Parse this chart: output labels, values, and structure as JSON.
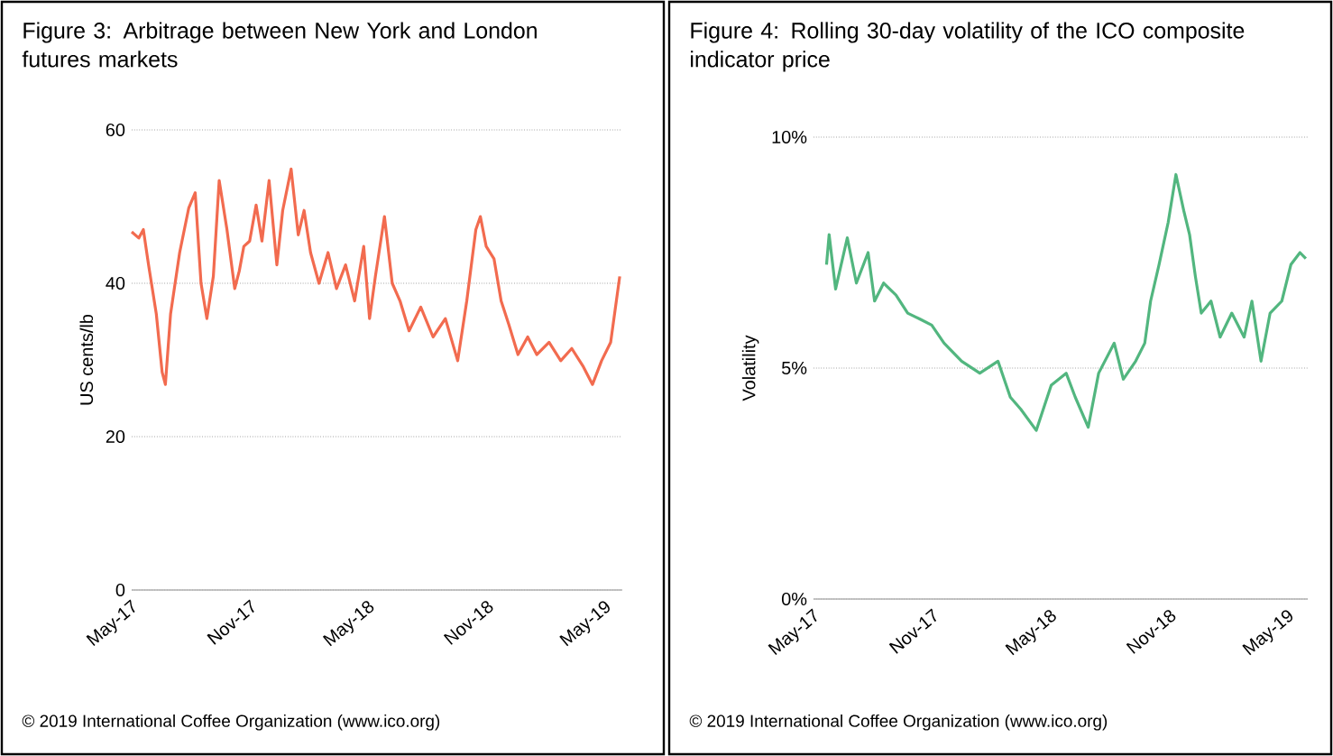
{
  "chart_data": [
    {
      "type": "line",
      "title": "Figure 3: Arbitrage between New York and London futures markets",
      "ylabel": "US cents/lb",
      "color": "#f26b4f",
      "grid": "y",
      "x": [
        "2017-05-01",
        "2017-05-12",
        "2017-05-19",
        "2017-05-27",
        "2017-06-08",
        "2017-06-17",
        "2017-06-22",
        "2017-06-30",
        "2017-07-14",
        "2017-07-28",
        "2017-08-07",
        "2017-08-16",
        "2017-08-25",
        "2017-09-04",
        "2017-09-13",
        "2017-09-25",
        "2017-10-07",
        "2017-10-14",
        "2017-10-21",
        "2017-10-30",
        "2017-11-09",
        "2017-11-18",
        "2017-11-29",
        "2017-12-11",
        "2017-12-20",
        "2018-01-02",
        "2018-01-13",
        "2018-01-22",
        "2018-02-01",
        "2018-02-14",
        "2018-02-28",
        "2018-03-13",
        "2018-03-27",
        "2018-04-10",
        "2018-04-24",
        "2018-05-03",
        "2018-05-12",
        "2018-05-26",
        "2018-06-07",
        "2018-06-19",
        "2018-07-03",
        "2018-07-21",
        "2018-08-09",
        "2018-08-28",
        "2018-09-16",
        "2018-09-30",
        "2018-10-14",
        "2018-10-21",
        "2018-10-30",
        "2018-11-11",
        "2018-11-22",
        "2018-12-04",
        "2018-12-18",
        "2019-01-02",
        "2019-01-16",
        "2019-02-04",
        "2019-02-22",
        "2019-03-11",
        "2019-03-29",
        "2019-04-12",
        "2019-04-26",
        "2019-05-10",
        "2019-05-24"
      ],
      "values": [
        46.7,
        45.9,
        47,
        42.4,
        36,
        28.4,
        26.8,
        36,
        44,
        49.8,
        51.8,
        40,
        35.4,
        40.9,
        53.4,
        47,
        39.3,
        41.6,
        44.8,
        45.5,
        50.2,
        45.5,
        53.4,
        42.4,
        49.5,
        54.9,
        46.3,
        49.5,
        44,
        40,
        44,
        39.3,
        42.4,
        37.7,
        44.8,
        35.4,
        40.9,
        48.7,
        40,
        37.7,
        33.8,
        36.9,
        33,
        35.4,
        29.9,
        37.7,
        47,
        48.7,
        44.8,
        43.2,
        37.7,
        34.6,
        30.7,
        33,
        30.7,
        32.3,
        29.9,
        31.5,
        29.1,
        26.8,
        29.9,
        32.3,
        40.9
      ],
      "xlim": [
        "2017-05-01",
        "2019-05-28"
      ],
      "ylim": [
        0,
        60
      ],
      "yticks": [
        0,
        20,
        40,
        60
      ],
      "xticks": [
        {
          "value": "2017-05-01",
          "label": "May-17"
        },
        {
          "value": "2017-11-01",
          "label": "Nov-17"
        },
        {
          "value": "2018-05-01",
          "label": "May-18"
        },
        {
          "value": "2018-11-01",
          "label": "Nov-18"
        },
        {
          "value": "2019-05-01",
          "label": "May-19"
        }
      ],
      "annotations": [
        "© 2019 International Coffee Organization (www.ico.org)"
      ]
    },
    {
      "type": "line",
      "title": "Figure 4: Rolling 30-day volatility of the ICO composite indicator price",
      "ylabel": "Volatility",
      "color": "#52b67f",
      "grid": "y",
      "x": [
        "2017-05-21",
        "2017-05-25",
        "2017-06-04",
        "2017-06-22",
        "2017-07-06",
        "2017-07-24",
        "2017-08-03",
        "2017-08-17",
        "2017-09-05",
        "2017-09-23",
        "2017-10-12",
        "2017-10-30",
        "2017-11-18",
        "2017-12-15",
        "2018-01-12",
        "2018-02-09",
        "2018-02-28",
        "2018-03-16",
        "2018-04-09",
        "2018-05-02",
        "2018-05-25",
        "2018-06-08",
        "2018-06-28",
        "2018-07-14",
        "2018-08-07",
        "2018-08-21",
        "2018-09-09",
        "2018-09-23",
        "2018-10-02",
        "2018-10-15",
        "2018-10-29",
        "2018-11-10",
        "2018-11-22",
        "2018-12-01",
        "2018-12-10",
        "2018-12-19",
        "2019-01-03",
        "2019-01-17",
        "2019-02-04",
        "2019-02-23",
        "2019-03-07",
        "2019-03-21",
        "2019-04-04",
        "2019-04-22",
        "2019-05-06",
        "2019-05-20",
        "2019-05-29"
      ],
      "values": [
        7.24,
        7.89,
        6.71,
        7.82,
        6.84,
        7.5,
        6.45,
        6.84,
        6.58,
        6.19,
        6.06,
        5.93,
        5.54,
        5.15,
        4.89,
        5.15,
        4.37,
        4.11,
        3.65,
        4.63,
        4.89,
        4.37,
        3.72,
        4.89,
        5.54,
        4.76,
        5.15,
        5.54,
        6.45,
        7.24,
        8.15,
        9.19,
        8.41,
        7.89,
        6.98,
        6.19,
        6.45,
        5.67,
        6.19,
        5.67,
        6.45,
        5.15,
        6.19,
        6.45,
        7.24,
        7.5,
        7.37
      ],
      "xlim": [
        "2017-05-01",
        "2019-06-01"
      ],
      "ylim": [
        0,
        10
      ],
      "yticks": [
        {
          "value": 0,
          "label": "0%"
        },
        {
          "value": 5,
          "label": "5%"
        },
        {
          "value": 10,
          "label": "10%"
        }
      ],
      "xticks": [
        {
          "value": "2017-05-01",
          "label": "May-17"
        },
        {
          "value": "2017-11-01",
          "label": "Nov-17"
        },
        {
          "value": "2018-05-01",
          "label": "May-18"
        },
        {
          "value": "2018-11-01",
          "label": "Nov-18"
        },
        {
          "value": "2019-05-01",
          "label": "May-19"
        }
      ],
      "annotations": [
        "© 2019 International Coffee Organization (www.ico.org)"
      ]
    }
  ]
}
